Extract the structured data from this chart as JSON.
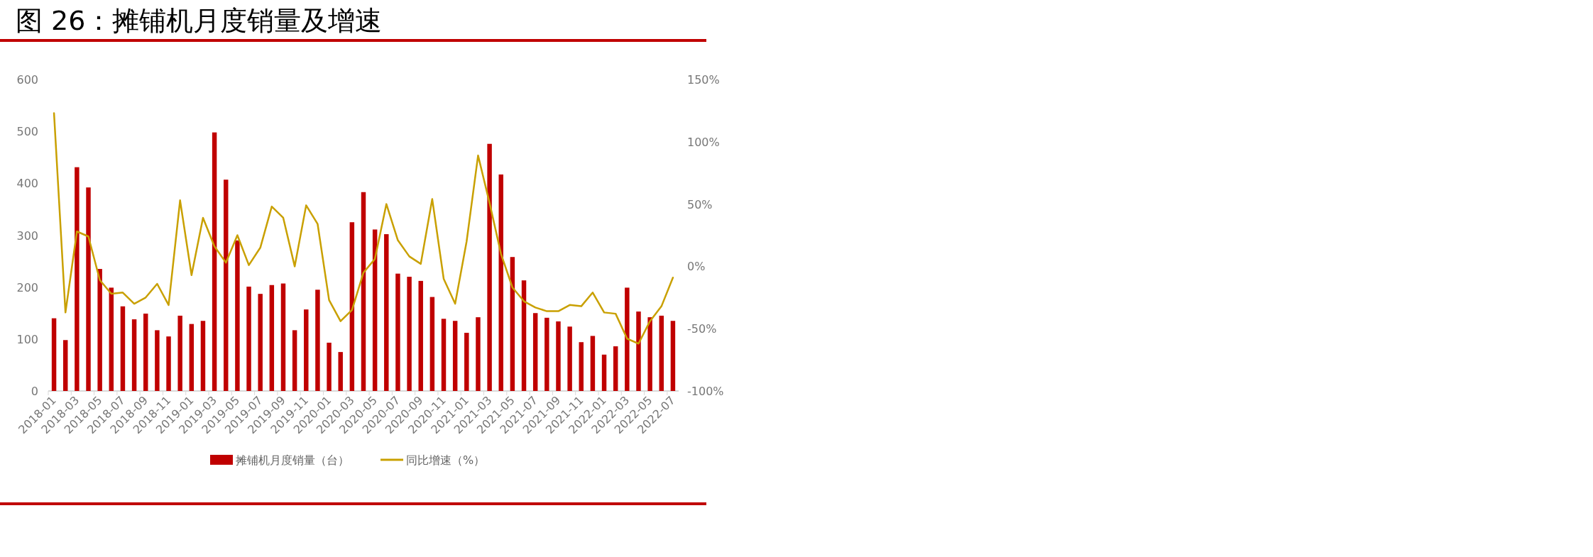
{
  "chart_data": {
    "type": "bar",
    "title": "图 26：摊铺机月度销量及增速",
    "categories": [
      "2018-01",
      null,
      "2018-03",
      null,
      "2018-05",
      null,
      "2018-07",
      null,
      "2018-09",
      null,
      "2018-11",
      null,
      "2019-01",
      null,
      "2019-03",
      null,
      "2019-05",
      null,
      "2019-07",
      null,
      "2019-09",
      null,
      "2019-11",
      null,
      "2020-01",
      null,
      "2020-03",
      null,
      "2020-05",
      null,
      "2020-07",
      null,
      "2020-09",
      null,
      "2020-11",
      null,
      "2021-01",
      null,
      "2021-03",
      null,
      "2021-05",
      null,
      "2021-07",
      null,
      "2021-09",
      null,
      "2021-11",
      null,
      "2022-01",
      null,
      "2022-03",
      null,
      "2022-05",
      null,
      "2022-07"
    ],
    "series": [
      {
        "name": "摊铺机月度销量（台）",
        "color": "#c00000",
        "values": [
          140,
          98,
          431,
          392,
          235,
          199,
          163,
          138,
          149,
          117,
          105,
          145,
          129,
          135,
          498,
          407,
          290,
          201,
          187,
          204,
          207,
          117,
          157,
          195,
          93,
          75,
          325,
          383,
          311,
          302,
          226,
          220,
          212,
          181,
          139,
          135,
          112,
          142,
          476,
          417,
          258,
          213,
          150,
          141,
          134,
          124,
          94,
          106,
          70,
          86,
          199,
          153,
          142,
          145,
          135
        ]
      },
      {
        "name": "同比增速（%）",
        "type": "line",
        "axis": "y2",
        "color": "#c9a000",
        "values": [
          123,
          -37,
          28,
          24,
          -11,
          -22,
          -21,
          -30,
          -25,
          -14,
          -31,
          53,
          -7,
          39,
          16,
          3,
          25,
          1,
          15,
          48,
          39,
          0,
          49,
          34,
          -27,
          -44,
          -35,
          -5,
          6,
          50,
          21,
          8,
          2,
          54,
          -10,
          -30,
          20,
          89,
          51,
          10,
          -17,
          -28,
          -33,
          -36,
          -36,
          -31,
          -32,
          -21,
          -37,
          -38,
          -58,
          -62,
          -44,
          -32,
          -9
        ]
      }
    ],
    "ylim": [
      0,
      600
    ],
    "yticks": [
      0,
      100,
      200,
      300,
      400,
      500,
      600
    ],
    "y2lim": [
      -100,
      150
    ],
    "y2ticks": [
      {
        "value": -100,
        "label": "-100%"
      },
      {
        "value": -50,
        "label": "-50%"
      },
      {
        "value": 0,
        "label": "0%"
      },
      {
        "value": 50,
        "label": "50%"
      },
      {
        "value": 100,
        "label": "100%"
      },
      {
        "value": 150,
        "label": "150%"
      }
    ],
    "legend": "bottom"
  }
}
